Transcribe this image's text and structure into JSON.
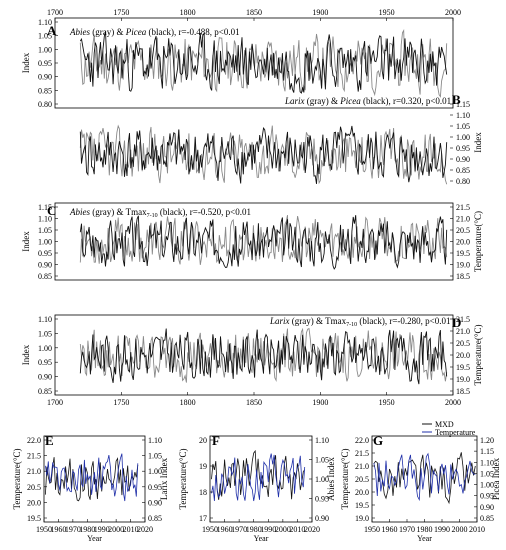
{
  "colors": {
    "gray": "#8a8a8a",
    "black": "#111111",
    "blue": "#1f2fa8"
  },
  "chart_data": [
    {
      "id": "A",
      "type": "line",
      "panel_label": "A",
      "annotation": [
        "Abies",
        " (gray) & ",
        "Picea",
        " (black), r=-0.488, p<0.01"
      ],
      "top_axis": {
        "ticks": [
          "1700",
          "1750",
          "1800",
          "1850",
          "1900",
          "1950",
          "2000"
        ]
      },
      "left_axis": {
        "label": "Index",
        "ticks": [
          "1.10",
          "1.05",
          "1.00",
          "0.95",
          "0.90",
          "0.85",
          "0.80"
        ],
        "ylim": [
          0.8,
          1.12
        ]
      },
      "xlim": [
        1700,
        2015
      ],
      "series": [
        {
          "color": "gray",
          "x": [
            1720,
            2010
          ],
          "mean": 1.0,
          "amp": 0.045,
          "seed": 11
        },
        {
          "color": "black",
          "x": [
            1720,
            2010
          ],
          "mean": 1.0,
          "amp": 0.05,
          "seed": 23
        }
      ]
    },
    {
      "id": "B",
      "type": "line",
      "panel_label": "B",
      "annotation": [
        "Larix",
        " (gray) & ",
        "Picea",
        " (black), r=0.320, p<0.01"
      ],
      "right_axis": {
        "label": "Index",
        "ticks": [
          "1.15",
          "1.10",
          "1.05",
          "1.00",
          "0.95",
          "0.90",
          "0.85",
          "0.80"
        ],
        "ylim": [
          0.8,
          1.15
        ]
      },
      "xlim": [
        1700,
        2015
      ],
      "series": [
        {
          "color": "gray",
          "x": [
            1720,
            2010
          ],
          "mean": 1.0,
          "amp": 0.05,
          "seed": 37
        },
        {
          "color": "black",
          "x": [
            1720,
            2010
          ],
          "mean": 1.0,
          "amp": 0.06,
          "seed": 41
        }
      ]
    },
    {
      "id": "C",
      "type": "line",
      "panel_label": "C",
      "annotation": [
        "Abies",
        " (gray) & Tmax",
        "7-10",
        " (black), r=-0.520, p<0.01"
      ],
      "left_axis": {
        "label": "Index",
        "ticks": [
          "1.15",
          "1.10",
          "1.05",
          "1.00",
          "0.95",
          "0.90",
          "0.85"
        ],
        "ylim": [
          0.85,
          1.15
        ]
      },
      "right_axis": {
        "label": "Temperature(°C)",
        "ticks": [
          "21.5",
          "21.0",
          "20.5",
          "20.0",
          "19.5",
          "19.0",
          "18.5"
        ],
        "ylim": [
          18.5,
          21.5
        ]
      },
      "xlim": [
        1700,
        2015
      ],
      "series": [
        {
          "color": "gray",
          "x": [
            1720,
            2010
          ],
          "mean": 1.0,
          "amp": 0.04,
          "seed": 53
        },
        {
          "color": "black",
          "x": [
            1720,
            2010
          ],
          "mean": 1.0,
          "amp": 0.045,
          "seed": 67
        }
      ]
    },
    {
      "id": "D",
      "type": "line",
      "panel_label": "D",
      "annotation": [
        "Larix",
        " (gray) & Tmax",
        "7-10",
        " (black), r=-0.280, p<0.01"
      ],
      "left_axis": {
        "label": "Index",
        "ticks": [
          "1.10",
          "1.05",
          "1.00",
          "0.95",
          "0.90",
          "0.85"
        ],
        "ylim": [
          0.85,
          1.12
        ]
      },
      "right_axis": {
        "label": "Temperature(°C)",
        "ticks": [
          "21.5",
          "21.0",
          "20.5",
          "20.0",
          "19.5",
          "19.0",
          "18.5"
        ],
        "ylim": [
          18.5,
          21.5
        ]
      },
      "bottom_axis": {
        "ticks": [
          "1700",
          "1750",
          "1800",
          "1850",
          "1900",
          "1950",
          "2000"
        ]
      },
      "xlim": [
        1700,
        2015
      ],
      "series": [
        {
          "color": "gray",
          "x": [
            1720,
            2010
          ],
          "mean": 1.0,
          "amp": 0.045,
          "seed": 79
        },
        {
          "color": "black",
          "x": [
            1720,
            2010
          ],
          "mean": 1.0,
          "amp": 0.045,
          "seed": 83
        }
      ]
    },
    {
      "id": "E",
      "type": "line",
      "panel_label": "E",
      "left_axis": {
        "label": "Temperature(°C)",
        "ticks": [
          "22.0",
          "21.5",
          "21.0",
          "20.5",
          "20.0",
          "19.5"
        ],
        "ylim": [
          19.5,
          22.0
        ]
      },
      "right_axis": {
        "label": "Larix Index",
        "ticks": [
          "1.10",
          "1.05",
          "1.00",
          "0.95",
          "0.90",
          "0.85"
        ],
        "ylim": [
          0.85,
          1.1
        ]
      },
      "bottom_axis": {
        "label": "Year",
        "ticks": [
          "1950",
          "1960",
          "1970",
          "1980",
          "1990",
          "2000",
          "2010",
          "2020"
        ]
      },
      "xlim": [
        1950,
        2020
      ],
      "series": [
        {
          "color": "black",
          "x": [
            1951,
            2015
          ],
          "mean": 20.95,
          "amp": 0.35,
          "seed": 101
        },
        {
          "color": "blue",
          "x": [
            1951,
            2015
          ],
          "mean": 20.8,
          "amp": 0.38,
          "seed": 103
        }
      ]
    },
    {
      "id": "F",
      "type": "line",
      "panel_label": "F",
      "left_axis": {
        "label": "Temperature(°C)",
        "ticks": [
          "20",
          "19",
          "18",
          "17"
        ],
        "ylim": [
          17,
          20.5
        ]
      },
      "right_axis": {
        "label": "Abies Index",
        "ticks": [
          "1.10",
          "1.05",
          "1.00",
          "0.95",
          "0.90"
        ],
        "ylim": [
          0.9,
          1.1
        ]
      },
      "bottom_axis": {
        "label": "Year",
        "ticks": [
          "1950",
          "1960",
          "1970",
          "1980",
          "1990",
          "2000",
          "2010",
          "2020"
        ]
      },
      "xlim": [
        1950,
        2020
      ],
      "series": [
        {
          "color": "black",
          "x": [
            1951,
            2015
          ],
          "mean": 18.7,
          "amp": 0.45,
          "seed": 111
        },
        {
          "color": "blue",
          "x": [
            1951,
            2015
          ],
          "mean": 18.6,
          "amp": 0.5,
          "seed": 113
        }
      ]
    },
    {
      "id": "G",
      "type": "line",
      "panel_label": "G",
      "legend": [
        "MXD",
        "Temperature"
      ],
      "left_axis": {
        "label": "Temperature(°C)",
        "ticks": [
          "22.0",
          "21.5",
          "21.0",
          "20.5",
          "20.0",
          "19.5",
          "19.0"
        ],
        "ylim": [
          19.0,
          22.0
        ]
      },
      "right_axis": {
        "label": "Picea Index",
        "ticks": [
          "1.20",
          "1.15",
          "1.10",
          "1.05",
          "1.00",
          "0.95",
          "0.90",
          "0.85"
        ],
        "ylim": [
          0.85,
          1.2
        ]
      },
      "bottom_axis": {
        "label": "Year",
        "ticks": [
          "1950",
          "1960",
          "1970",
          "1980",
          "1990",
          "2000",
          "2010"
        ]
      },
      "xlim": [
        1950,
        2010
      ],
      "series": [
        {
          "color": "black",
          "x": [
            1951,
            2009
          ],
          "mean": 20.5,
          "amp": 0.3,
          "seed": 121
        },
        {
          "color": "blue",
          "x": [
            1951,
            2009
          ],
          "mean": 20.4,
          "amp": 0.38,
          "seed": 127
        }
      ]
    }
  ]
}
